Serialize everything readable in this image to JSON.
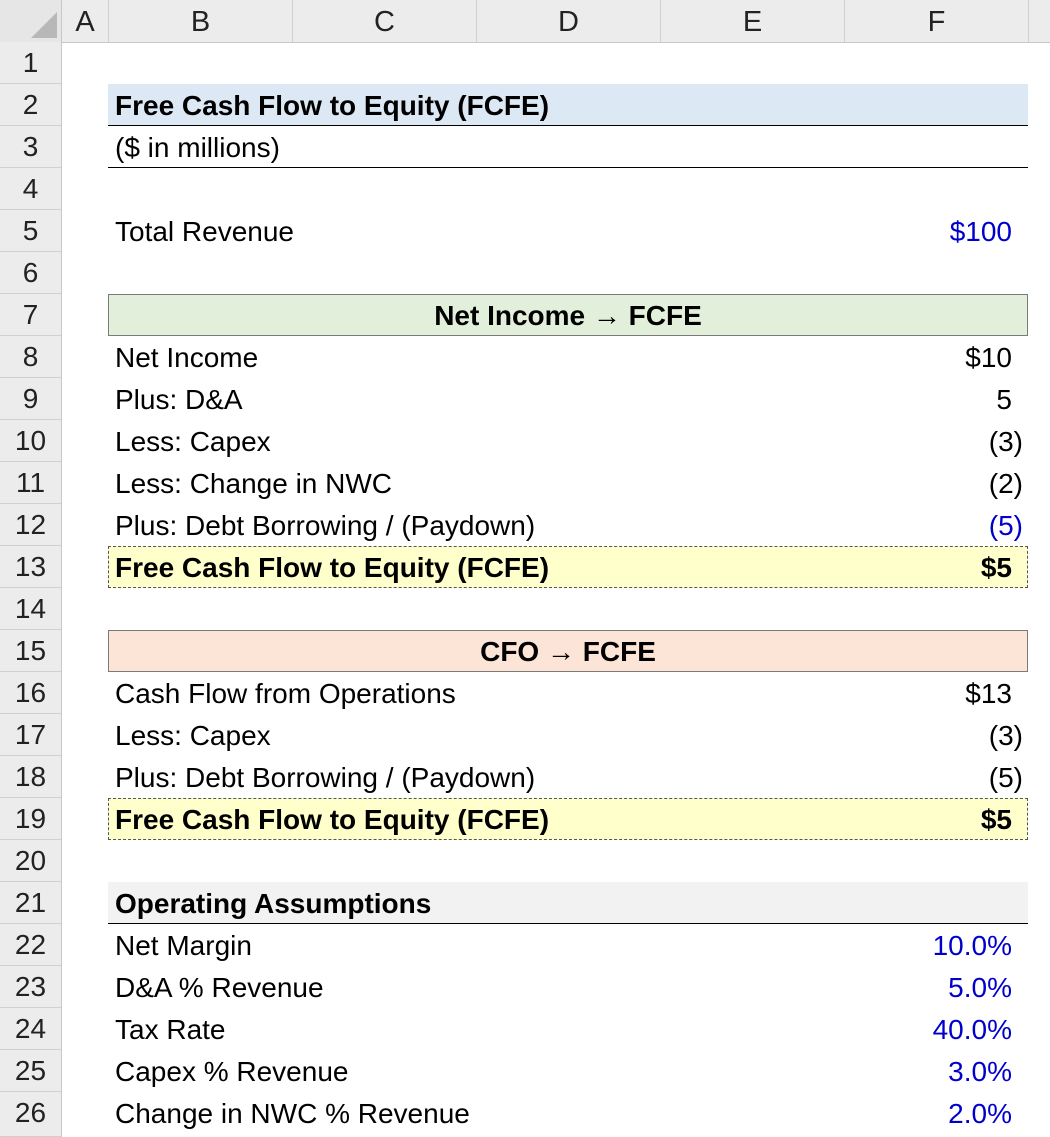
{
  "columns": [
    "A",
    "B",
    "C",
    "D",
    "E",
    "F"
  ],
  "rows": [
    "1",
    "2",
    "3",
    "4",
    "5",
    "6",
    "7",
    "8",
    "9",
    "10",
    "11",
    "12",
    "13",
    "14",
    "15",
    "16",
    "17",
    "18",
    "19",
    "20",
    "21",
    "22",
    "23",
    "24",
    "25",
    "26"
  ],
  "title": "Free Cash Flow to Equity (FCFE)",
  "units": "($ in millions)",
  "total_revenue": {
    "label": "Total Revenue",
    "value": "$100"
  },
  "ni_section": {
    "header": "Net Income → FCFE",
    "items": [
      {
        "label": "Net Income",
        "value": "$10"
      },
      {
        "label": "Plus: D&A",
        "value": "5"
      },
      {
        "label": "Less: Capex",
        "value": "(3)"
      },
      {
        "label": "Less: Change in NWC",
        "value": "(2)"
      },
      {
        "label": "Plus: Debt Borrowing / (Paydown)",
        "value": "(5)"
      }
    ],
    "total": {
      "label": "Free Cash Flow to Equity (FCFE)",
      "value": "$5"
    }
  },
  "cfo_section": {
    "header": "CFO → FCFE",
    "items": [
      {
        "label": "Cash Flow from Operations",
        "value": "$13"
      },
      {
        "label": "Less: Capex",
        "value": "(3)"
      },
      {
        "label": "Plus: Debt Borrowing / (Paydown)",
        "value": "(5)"
      }
    ],
    "total": {
      "label": "Free Cash Flow to Equity (FCFE)",
      "value": "$5"
    }
  },
  "assumptions": {
    "header": "Operating Assumptions",
    "items": [
      {
        "label": "Net Margin",
        "value": "10.0%"
      },
      {
        "label": "D&A % Revenue",
        "value": "5.0%"
      },
      {
        "label": "Tax Rate",
        "value": "40.0%"
      },
      {
        "label": "Capex % Revenue",
        "value": "3.0%"
      },
      {
        "label": "Change in NWC % Revenue",
        "value": "2.0%"
      }
    ]
  },
  "colors": {
    "title_fill": "#dde8f5",
    "ni_header_fill": "#e2efda",
    "cfo_header_fill": "#fce4d6",
    "total_fill": "#ffffcc",
    "assumptions_fill": "#f2f2f2",
    "input_blue": "#0000cc"
  }
}
